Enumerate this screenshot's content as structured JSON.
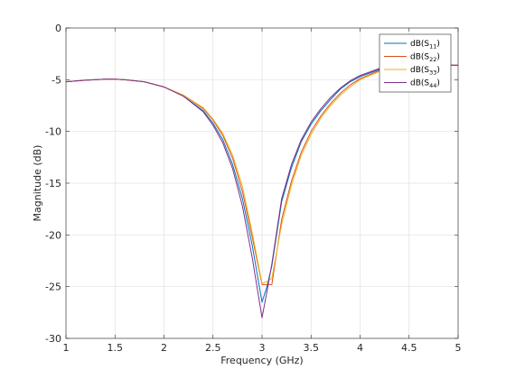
{
  "chart_data": {
    "type": "line",
    "xlabel": "Frequency (GHz)",
    "ylabel": "Magnitude (dB)",
    "xlim": [
      1,
      5
    ],
    "ylim": [
      -30,
      0
    ],
    "xticks": [
      1,
      1.5,
      2,
      2.5,
      3,
      3.5,
      4,
      4.5,
      5
    ],
    "xtick_labels": [
      "1",
      "1.5",
      "2",
      "2.5",
      "3",
      "3.5",
      "4",
      "4.5",
      "5"
    ],
    "yticks": [
      0,
      -5,
      -10,
      -15,
      -20,
      -25,
      -30
    ],
    "ytick_labels": [
      "0",
      "-5",
      "-10",
      "-15",
      "-20",
      "-25",
      "-30"
    ],
    "grid": true,
    "legend_position": "top-right",
    "series": [
      {
        "legend": {
          "prefix": "dB(S",
          "sub": "11",
          "suffix": ")"
        },
        "color": "#0072BD",
        "x": [
          1.0,
          1.2,
          1.4,
          1.5,
          1.6,
          1.8,
          2.0,
          2.2,
          2.4,
          2.5,
          2.6,
          2.7,
          2.8,
          2.9,
          3.0,
          3.05,
          3.1,
          3.2,
          3.3,
          3.4,
          3.5,
          3.6,
          3.7,
          3.8,
          3.9,
          4.0,
          4.2,
          4.4,
          4.6,
          4.8,
          5.0
        ],
        "y": [
          -5.2,
          -5.05,
          -4.95,
          -4.95,
          -5.0,
          -5.2,
          -5.7,
          -6.6,
          -8.0,
          -9.2,
          -10.8,
          -13.2,
          -16.5,
          -21.0,
          -26.5,
          -25.0,
          -23.0,
          -16.8,
          -13.5,
          -11.0,
          -9.3,
          -8.0,
          -6.9,
          -5.9,
          -5.2,
          -4.7,
          -4.0,
          -3.7,
          -3.6,
          -3.6,
          -3.6
        ]
      },
      {
        "legend": {
          "prefix": "dB(S",
          "sub": "22",
          "suffix": ")"
        },
        "color": "#D95319",
        "x": [
          1.0,
          1.2,
          1.4,
          1.5,
          1.6,
          1.8,
          2.0,
          2.2,
          2.4,
          2.5,
          2.6,
          2.7,
          2.8,
          2.9,
          3.0,
          3.05,
          3.1,
          3.2,
          3.3,
          3.4,
          3.5,
          3.6,
          3.7,
          3.8,
          3.9,
          4.0,
          4.2,
          4.4,
          4.6,
          4.8,
          5.0
        ],
        "y": [
          -5.2,
          -5.05,
          -4.95,
          -4.95,
          -5.0,
          -5.2,
          -5.7,
          -6.5,
          -7.8,
          -8.9,
          -10.4,
          -12.6,
          -15.8,
          -20.2,
          -24.8,
          -24.8,
          -24.8,
          -18.5,
          -14.8,
          -12.0,
          -10.0,
          -8.5,
          -7.3,
          -6.3,
          -5.5,
          -4.9,
          -4.1,
          -3.7,
          -3.6,
          -3.6,
          -3.6
        ]
      },
      {
        "legend": {
          "prefix": "dB(S",
          "sub": "33",
          "suffix": ")"
        },
        "color": "#EDB120",
        "x": [
          1.0,
          1.2,
          1.4,
          1.5,
          1.6,
          1.8,
          2.0,
          2.2,
          2.4,
          2.5,
          2.6,
          2.7,
          2.8,
          2.9,
          3.0,
          3.05,
          3.1,
          3.2,
          3.3,
          3.4,
          3.5,
          3.6,
          3.7,
          3.8,
          3.9,
          4.0,
          4.2,
          4.4,
          4.6,
          4.8,
          5.0
        ],
        "y": [
          -5.2,
          -5.05,
          -4.95,
          -4.95,
          -5.0,
          -5.2,
          -5.7,
          -6.5,
          -7.7,
          -8.8,
          -10.2,
          -12.3,
          -15.3,
          -19.8,
          -24.7,
          -24.5,
          -24.2,
          -19.0,
          -15.2,
          -12.3,
          -10.3,
          -8.7,
          -7.5,
          -6.5,
          -5.7,
          -5.0,
          -4.2,
          -3.8,
          -3.6,
          -3.6,
          -3.6
        ]
      },
      {
        "legend": {
          "prefix": "dB(S",
          "sub": "44",
          "suffix": ")"
        },
        "color": "#7E2F8E",
        "x": [
          1.0,
          1.2,
          1.4,
          1.5,
          1.6,
          1.8,
          2.0,
          2.2,
          2.4,
          2.5,
          2.6,
          2.7,
          2.8,
          2.9,
          3.0,
          3.05,
          3.1,
          3.2,
          3.3,
          3.4,
          3.5,
          3.6,
          3.7,
          3.8,
          3.9,
          4.0,
          4.2,
          4.4,
          4.6,
          4.8,
          5.0
        ],
        "y": [
          -5.2,
          -5.05,
          -4.95,
          -4.95,
          -5.0,
          -5.2,
          -5.7,
          -6.6,
          -8.1,
          -9.4,
          -11.1,
          -13.6,
          -17.2,
          -22.2,
          -28.0,
          -25.5,
          -22.8,
          -16.5,
          -13.2,
          -10.8,
          -9.1,
          -7.8,
          -6.7,
          -5.8,
          -5.1,
          -4.6,
          -3.9,
          -3.6,
          -3.6,
          -3.6,
          -3.6
        ]
      }
    ]
  }
}
